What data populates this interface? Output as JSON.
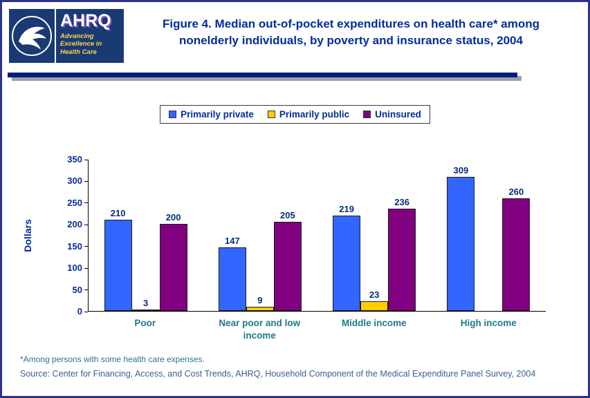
{
  "header": {
    "title": "Figure 4. Median out-of-pocket expenditures on health care* among nonelderly individuals, by poverty and insurance status, 2004",
    "ahrq_acronym": "AHRQ",
    "ahrq_tagline": "Advancing\nExcellence in\nHealth Care"
  },
  "chart_data": {
    "type": "bar",
    "title": "Figure 4. Median out-of-pocket expenditures on health care* among nonelderly individuals, by poverty and insurance status, 2004",
    "categories": [
      "Poor",
      "Near poor and low income",
      "Middle income",
      "High income"
    ],
    "series": [
      {
        "name": "Primarily private",
        "color": "#3366FF",
        "values": [
          210,
          147,
          219,
          309
        ]
      },
      {
        "name": "Primarily public",
        "color": "#FFCC00",
        "values": [
          3,
          9,
          23,
          null
        ]
      },
      {
        "name": "Uninsured",
        "color": "#800080",
        "values": [
          200,
          205,
          236,
          260
        ]
      }
    ],
    "xlabel": "",
    "ylabel": "Dollars",
    "ylim": [
      0,
      350
    ],
    "ytick_step": 50,
    "grid": false,
    "legend_position": "top"
  },
  "footnotes": {
    "note": "*Among persons with some health care expenses.",
    "source": "Source: Center for Financing, Access, and Cost Trends, AHRQ, Household Component of the Medical Expenditure Panel Survey, 2004"
  },
  "colors": {
    "title_text": "#002D9A",
    "axis_text": "#002D9A",
    "category_text": "#1D7A8A",
    "footnote_text": "#2B7285",
    "source_text": "#3A5F8F",
    "header_rule": "#001F78",
    "page_border": "#2B2F90",
    "logo_background": "#1A3A74",
    "logo_tagline": "#FFD24A"
  }
}
